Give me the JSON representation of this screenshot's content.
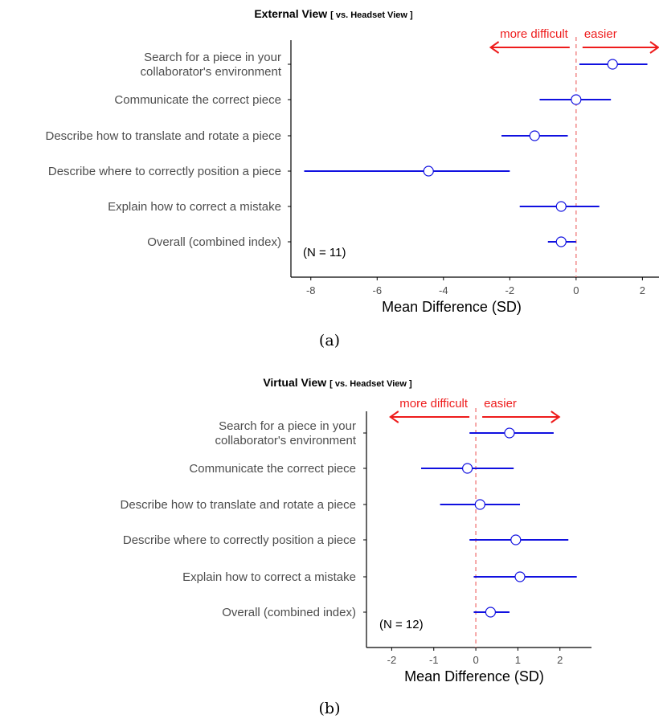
{
  "chart_data": [
    {
      "type": "scatter",
      "title": "External View",
      "subtitle": "[ vs. Headset View ]",
      "xlabel": "Mean Difference (SD)",
      "xlim": [
        -8.6,
        2.5
      ],
      "xticks": [
        -8,
        -6,
        -4,
        -2,
        0,
        2
      ],
      "reference_x": 0,
      "annotation": "(N = 11)",
      "direction_labels": {
        "left": "more difficult",
        "right": "easier"
      },
      "direction_arrow_extent": [
        -2.6,
        2.5
      ],
      "caption": "(a)",
      "categories": [
        [
          "Search for a piece in your",
          "collaborator's environment"
        ],
        [
          "Communicate the correct piece"
        ],
        [
          "Describe how to translate and rotate a piece"
        ],
        [
          "Describe where to correctly position a piece"
        ],
        [
          "Explain how to correct a mistake"
        ],
        [
          "Overall (combined index)"
        ]
      ],
      "points": [
        {
          "mean": 1.1,
          "lower": 0.1,
          "upper": 2.15
        },
        {
          "mean": 0.0,
          "lower": -1.1,
          "upper": 1.05
        },
        {
          "mean": -1.25,
          "lower": -2.25,
          "upper": -0.25
        },
        {
          "mean": -4.45,
          "lower": -8.2,
          "upper": -2.0
        },
        {
          "mean": -0.45,
          "lower": -1.7,
          "upper": 0.7
        },
        {
          "mean": -0.45,
          "lower": -0.85,
          "upper": 0.0
        }
      ]
    },
    {
      "type": "scatter",
      "title": "Virtual View",
      "subtitle": "[ vs. Headset View ]",
      "xlabel": "Mean Difference (SD)",
      "xlim": [
        -2.6,
        2.75
      ],
      "xticks": [
        -2,
        -1,
        0,
        1,
        2
      ],
      "reference_x": 0,
      "annotation": "(N = 12)",
      "direction_labels": {
        "left": "more difficult",
        "right": "easier"
      },
      "direction_arrow_extent": [
        -2.05,
        2.0
      ],
      "caption": "(b)",
      "categories": [
        [
          "Search for a piece in your",
          "collaborator's environment"
        ],
        [
          "Communicate the correct piece"
        ],
        [
          "Describe how to translate and rotate a piece"
        ],
        [
          "Describe where to correctly position a piece"
        ],
        [
          "Explain how to correct a mistake"
        ],
        [
          "Overall (combined index)"
        ]
      ],
      "points": [
        {
          "mean": 0.8,
          "lower": -0.15,
          "upper": 1.85
        },
        {
          "mean": -0.2,
          "lower": -1.3,
          "upper": 0.9
        },
        {
          "mean": 0.1,
          "lower": -0.85,
          "upper": 1.05
        },
        {
          "mean": 0.95,
          "lower": -0.15,
          "upper": 2.2
        },
        {
          "mean": 1.05,
          "lower": -0.05,
          "upper": 2.4
        },
        {
          "mean": 0.35,
          "lower": -0.05,
          "upper": 0.8
        }
      ]
    }
  ],
  "colors": {
    "interval": "#1010e0",
    "reference": "#f08080",
    "arrow": "#ee1c1c",
    "axis": "#000000"
  }
}
